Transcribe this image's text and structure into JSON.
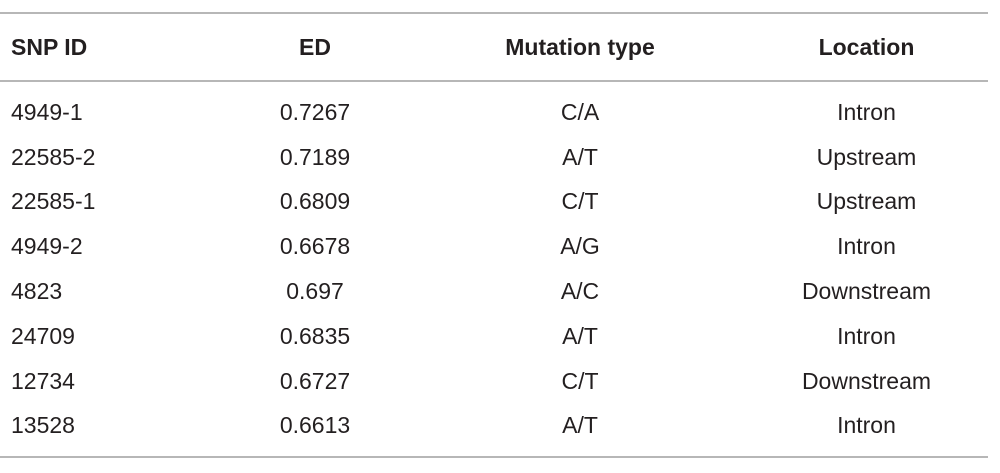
{
  "table": {
    "columns": [
      "SNP ID",
      "ED",
      "Mutation type",
      "Location"
    ],
    "rows": [
      [
        "4949-1",
        "0.7267",
        "C/A",
        "Intron"
      ],
      [
        "22585-2",
        "0.7189",
        "A/T",
        "Upstream"
      ],
      [
        "22585-1",
        "0.6809",
        "C/T",
        "Upstream"
      ],
      [
        "4949-2",
        "0.6678",
        "A/G",
        "Intron"
      ],
      [
        "4823",
        "0.697",
        "A/C",
        "Downstream"
      ],
      [
        "24709",
        "0.6835",
        "A/T",
        "Intron"
      ],
      [
        "12734",
        "0.6727",
        "C/T",
        "Downstream"
      ],
      [
        "13528",
        "0.6613",
        "A/T",
        "Intron"
      ]
    ]
  }
}
